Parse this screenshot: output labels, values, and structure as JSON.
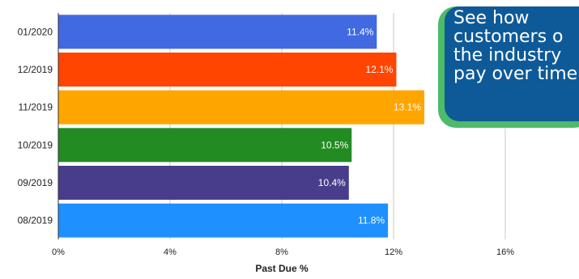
{
  "chart_data": {
    "type": "bar",
    "orientation": "horizontal",
    "categories": [
      "01/2020",
      "12/2019",
      "11/2019",
      "10/2019",
      "09/2019",
      "08/2019"
    ],
    "values": [
      11.4,
      12.1,
      13.1,
      10.5,
      10.4,
      11.8
    ],
    "value_labels": [
      "11.4%",
      "12.1%",
      "13.1%",
      "10.5%",
      "10.4%",
      "11.8%"
    ],
    "colors": [
      "#4169e1",
      "#ff4500",
      "#ffa500",
      "#228b22",
      "#483d8b",
      "#1e90ff"
    ],
    "xlabel": "Past Due %",
    "xlim": [
      0,
      16
    ],
    "x_ticks": [
      0,
      4,
      8,
      12,
      16
    ],
    "x_tick_labels": [
      "0%",
      "4%",
      "8%",
      "12%",
      "16%"
    ],
    "grid": true
  },
  "callout": {
    "text": "See how\ncustomers o\nthe industry\npay over time",
    "colors": {
      "box": "#0e5a98",
      "border": "#4cbb6a"
    }
  }
}
